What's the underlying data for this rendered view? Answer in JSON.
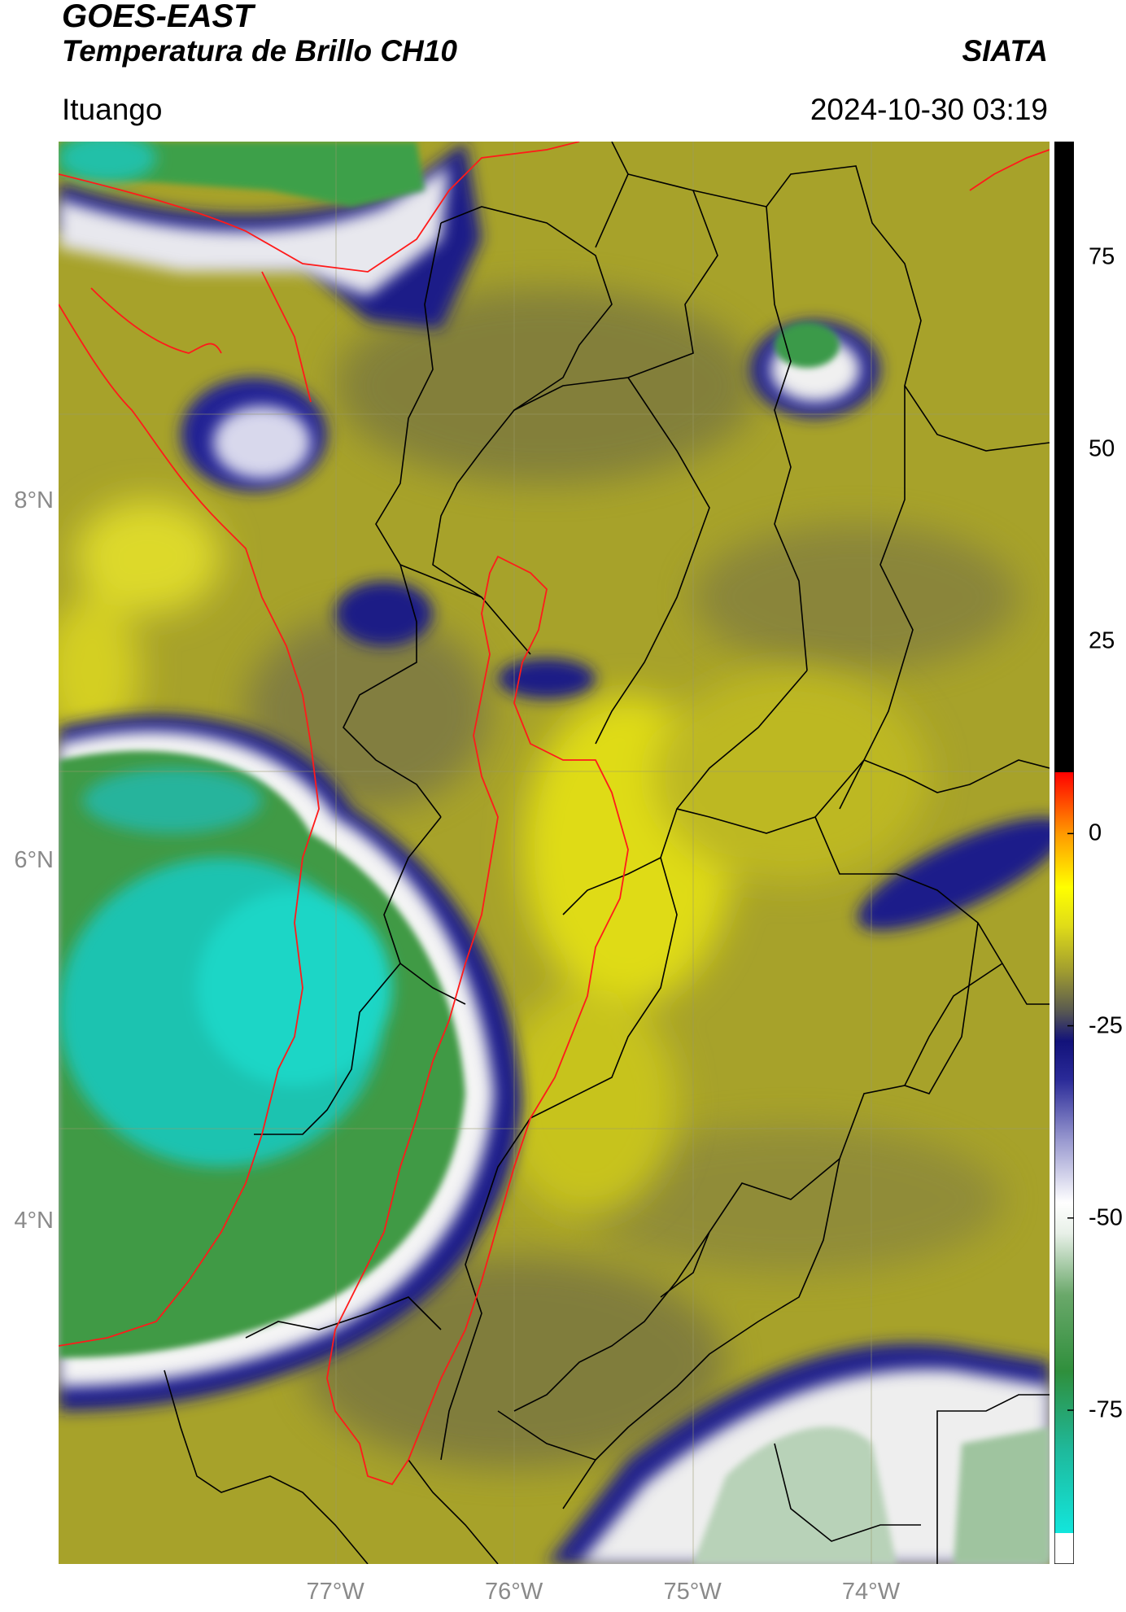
{
  "header": {
    "satellite": "GOES-EAST",
    "product": "Temperatura de Brillo CH10",
    "agency": "SIATA",
    "location": "Ituango",
    "datetime": "2024-10-30 03:19"
  },
  "map": {
    "extent_lon": [
      -78.55,
      -73.0
    ],
    "extent_lat": [
      2.1,
      10.0
    ],
    "lat_ticks": [
      {
        "value": 8,
        "label": "8°N"
      },
      {
        "value": 6,
        "label": "6°N"
      },
      {
        "value": 4,
        "label": "4°N"
      }
    ],
    "lon_ticks": [
      {
        "value": -77,
        "label": "77°W"
      },
      {
        "value": -76,
        "label": "76°W"
      },
      {
        "value": -75,
        "label": "75°W"
      },
      {
        "value": -74,
        "label": "74°W"
      }
    ],
    "gridlines": true,
    "colors": {
      "background_warm": "#a9a520",
      "bright_yellow": "#e6e316",
      "cold_cloud_green": "#3c9c3c",
      "cold_cloud_teal": "#17d4c0",
      "edge_navy": "#1b1a86",
      "edge_white": "#f2f2f2",
      "coastline": "#ff1a1a",
      "boundaries": "#000000"
    }
  },
  "colorbar": {
    "range": [
      -95,
      90
    ],
    "ticks": [
      {
        "value": 75,
        "label": "75"
      },
      {
        "value": 50,
        "label": "50"
      },
      {
        "value": 25,
        "label": "25"
      },
      {
        "value": 0,
        "label": "0"
      },
      {
        "value": -25,
        "label": "-25"
      },
      {
        "value": -50,
        "label": "-50"
      },
      {
        "value": -75,
        "label": "-75"
      }
    ],
    "stops": [
      {
        "value": -95,
        "color": "#ffffff"
      },
      {
        "value": -91,
        "color": "#ffffff"
      },
      {
        "value": -91,
        "color": "#12e6dc"
      },
      {
        "value": -80,
        "color": "#1fb89a"
      },
      {
        "value": -70,
        "color": "#2f8f3c"
      },
      {
        "value": -60,
        "color": "#6aa86a"
      },
      {
        "value": -52,
        "color": "#e8f0e8"
      },
      {
        "value": -48,
        "color": "#ffffff"
      },
      {
        "value": -40,
        "color": "#9a9ad0"
      },
      {
        "value": -32,
        "color": "#2a2a98"
      },
      {
        "value": -27,
        "color": "#12127a"
      },
      {
        "value": -23,
        "color": "#5a5a50"
      },
      {
        "value": -18,
        "color": "#9f9b30"
      },
      {
        "value": -12,
        "color": "#e0dc18"
      },
      {
        "value": -7,
        "color": "#ffff00"
      },
      {
        "value": 0,
        "color": "#ff9900"
      },
      {
        "value": 8,
        "color": "#ff0000"
      },
      {
        "value": 8,
        "color": "#000000"
      },
      {
        "value": 90,
        "color": "#000000"
      }
    ]
  }
}
